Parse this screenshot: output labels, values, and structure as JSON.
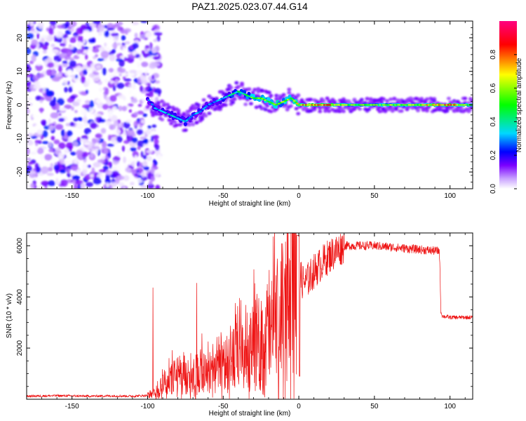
{
  "title": "PAZ1.2025.023.07.44.G14",
  "colors": {
    "axes": "#000000",
    "snr_line": "#ee1111",
    "colormap": [
      "#ffffff",
      "#c9a3ff",
      "#7a00ff",
      "#0000ff",
      "#00d8ff",
      "#00ff00",
      "#ffff00",
      "#ff0000",
      "#ff0080"
    ]
  },
  "chart_data": [
    {
      "type": "heatmap",
      "title": "PAZ1.2025.023.07.44.G14",
      "xlabel": "Height of straight line (km)",
      "ylabel": "Frequency (Hz)",
      "xlim": [
        -180,
        115
      ],
      "ylim": [
        -25,
        25
      ],
      "xticks": [
        -150,
        -100,
        -50,
        0,
        50,
        100
      ],
      "yticks": [
        -20,
        -10,
        0,
        10,
        20
      ],
      "colorbar": {
        "label": "Normalized spectral amplitude",
        "range": [
          0,
          1
        ],
        "ticks": [
          "0.0",
          "0.2",
          "0.4",
          "0.6",
          "0.8"
        ],
        "tick_values": [
          0.0,
          0.2,
          0.4,
          0.6,
          0.8
        ]
      },
      "ridge": {
        "x": [
          -100,
          -95,
          -90,
          -85,
          -80,
          -75,
          -70,
          -65,
          -60,
          -55,
          -50,
          -45,
          -40,
          -35,
          -30,
          -25,
          -20,
          -15,
          -10,
          -5,
          0,
          5,
          10,
          20,
          30,
          40,
          50,
          60,
          70,
          80,
          90,
          100,
          110,
          115
        ],
        "frequency": [
          2,
          -1,
          -2,
          -3,
          -4,
          -5,
          -3,
          -2,
          0,
          1,
          2,
          3,
          4,
          3,
          2,
          2,
          1,
          0,
          1,
          2,
          0,
          0,
          0,
          0,
          0,
          0,
          0,
          0,
          0,
          0,
          0,
          0,
          0,
          0
        ],
        "amplitude": [
          0.25,
          0.3,
          0.3,
          0.35,
          0.35,
          0.35,
          0.3,
          0.3,
          0.3,
          0.3,
          0.35,
          0.4,
          0.45,
          0.45,
          0.55,
          0.6,
          0.55,
          0.6,
          0.55,
          0.6,
          0.7,
          0.75,
          0.8,
          0.8,
          0.6,
          0.55,
          0.55,
          0.6,
          0.6,
          0.65,
          0.75,
          0.8,
          0.6,
          0.6
        ]
      },
      "noise_region_x": [
        -180,
        -100
      ]
    },
    {
      "type": "line",
      "xlabel": "Height of straight line (km)",
      "ylabel": "SNR (10 * v/v)",
      "xlim": [
        -180,
        115
      ],
      "ylim": [
        0,
        6500
      ],
      "xticks": [
        -150,
        -100,
        -50,
        0,
        50,
        100
      ],
      "yticks": [
        2000,
        4000,
        6000
      ],
      "series": [
        {
          "x": [
            -180,
            -170,
            -160,
            -150,
            -140,
            -130,
            -120,
            -110,
            -100,
            -95,
            -90,
            -85,
            -80,
            -75,
            -70,
            -65,
            -60,
            -55,
            -50,
            -45,
            -40,
            -35,
            -30,
            -25,
            -20,
            -15,
            -10,
            -5,
            -2,
            0,
            2,
            5,
            10,
            15,
            20,
            25,
            30,
            40,
            50,
            60,
            70,
            80,
            90,
            93,
            94,
            95,
            100,
            110,
            115
          ],
          "values": [
            120,
            130,
            140,
            130,
            120,
            130,
            130,
            120,
            150,
            250,
            600,
            800,
            900,
            950,
            1000,
            1100,
            1200,
            1300,
            1500,
            1600,
            1700,
            1800,
            2000,
            2200,
            2500,
            2900,
            3400,
            4200,
            4800,
            5000,
            4600,
            4600,
            5000,
            5300,
            5600,
            5800,
            6000,
            6000,
            6000,
            5950,
            5900,
            5850,
            5800,
            5800,
            3400,
            3250,
            3200,
            3200,
            3200
          ]
        }
      ]
    }
  ]
}
